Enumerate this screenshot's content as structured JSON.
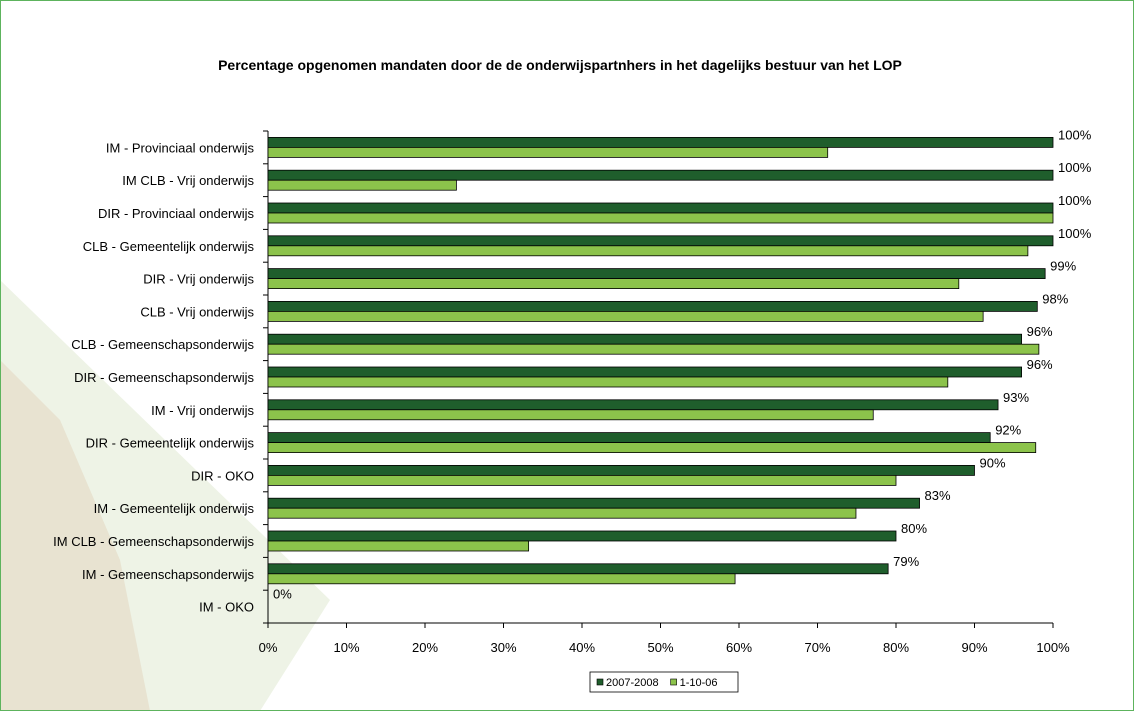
{
  "chart_data": {
    "type": "hbar",
    "title": "Percentage opgenomen mandaten door de de onderwijspartnhers in het dagelijks bestuur van het LOP",
    "categories": [
      "IM - Provinciaal onderwijs",
      "IM CLB - Vrij onderwijs",
      "DIR - Provinciaal onderwijs",
      "CLB - Gemeentelijk onderwijs",
      "DIR - Vrij onderwijs",
      "CLB - Vrij onderwijs",
      "CLB - Gemeenschapsonderwijs",
      "DIR - Gemeenschapsonderwijs",
      "IM - Vrij onderwijs",
      "DIR - Gemeentelijk onderwijs",
      "DIR - OKO",
      "IM - Gemeentelijk onderwijs",
      "IM CLB - Gemeenschapsonderwijs",
      "IM - Gemeenschapsonderwijs",
      "IM - OKO"
    ],
    "series": [
      {
        "name": "2007-2008",
        "color": "#1f5e2c",
        "values": [
          100,
          100,
          100,
          100,
          99,
          98,
          96,
          96,
          93,
          92,
          90,
          83,
          80,
          79,
          0
        ],
        "value_labels": [
          "100%",
          "100%",
          "100%",
          "100%",
          "99%",
          "98%",
          "96%",
          "96%",
          "93%",
          "92%",
          "90%",
          "83%",
          "80%",
          "79%",
          "0%"
        ]
      },
      {
        "name": "1-10-06",
        "color": "#8cc34b",
        "values": [
          71.3,
          24,
          100,
          96.8,
          88,
          91.1,
          98.2,
          86.6,
          77.1,
          97.8,
          80,
          74.9,
          33.2,
          59.5,
          0
        ]
      }
    ],
    "xlim": [
      0,
      100
    ],
    "xticks": [
      {
        "value": 0,
        "label": "0%"
      },
      {
        "value": 10,
        "label": "10%"
      },
      {
        "value": 20,
        "label": "20%"
      },
      {
        "value": 30,
        "label": "30%"
      },
      {
        "value": 40,
        "label": "40%"
      },
      {
        "value": 50,
        "label": "50%"
      },
      {
        "value": 60,
        "label": "60%"
      },
      {
        "value": 70,
        "label": "70%"
      },
      {
        "value": 80,
        "label": "80%"
      },
      {
        "value": 90,
        "label": "90%"
      },
      {
        "value": 100,
        "label": "100%"
      }
    ],
    "legend": "bottom"
  }
}
